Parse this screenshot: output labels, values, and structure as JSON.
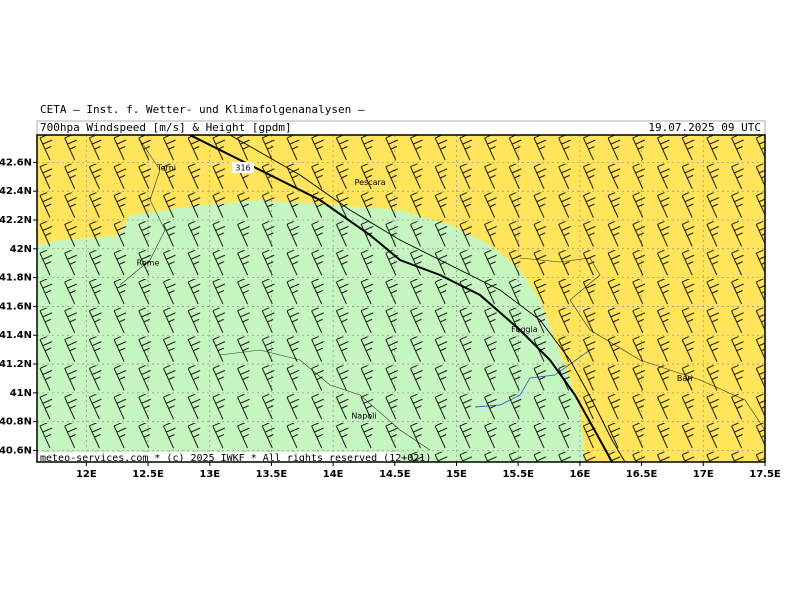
{
  "header": {
    "institute": "CETA – Inst. f. Wetter- und Klimafolgenanalysen –",
    "title": "700hpa Windspeed [m/s] & Height [gpdm]",
    "date": "19.07.2025 09 UTC"
  },
  "footer": "meteo-services.com * (c) 2025 IWKF * All rights reserved (12+021)",
  "map": {
    "xlim": [
      11.6,
      17.5
    ],
    "ylim": [
      40.52,
      42.79
    ],
    "xticks": [
      {
        "value": 12,
        "label": "12E"
      },
      {
        "value": 12.5,
        "label": "12.5E"
      },
      {
        "value": 13,
        "label": "13E"
      },
      {
        "value": 13.5,
        "label": "13.5E"
      },
      {
        "value": 14,
        "label": "14E"
      },
      {
        "value": 14.5,
        "label": "14.5E"
      },
      {
        "value": 15,
        "label": "15E"
      },
      {
        "value": 15.5,
        "label": "15.5E"
      },
      {
        "value": 16,
        "label": "16E"
      },
      {
        "value": 16.5,
        "label": "16.5E"
      },
      {
        "value": 17,
        "label": "17E"
      },
      {
        "value": 17.5,
        "label": "17.5E"
      }
    ],
    "yticks": [
      {
        "value": 40.6,
        "label": "40.6N"
      },
      {
        "value": 40.8,
        "label": "40.8N"
      },
      {
        "value": 41,
        "label": "41N"
      },
      {
        "value": 41.2,
        "label": "41.2N"
      },
      {
        "value": 41.4,
        "label": "41.4N"
      },
      {
        "value": 41.6,
        "label": "41.6N"
      },
      {
        "value": 41.8,
        "label": "41.8N"
      },
      {
        "value": 42,
        "label": "42N"
      },
      {
        "value": 42.2,
        "label": "42.2N"
      },
      {
        "value": 42.4,
        "label": "42.4N"
      },
      {
        "value": 42.6,
        "label": "42.6N"
      }
    ],
    "cities": [
      {
        "name": "Terni",
        "lon": 12.65,
        "lat": 42.56
      },
      {
        "name": "Pescara",
        "lon": 14.3,
        "lat": 42.46
      },
      {
        "name": "Rome",
        "lon": 12.5,
        "lat": 41.9
      },
      {
        "name": "Foggia",
        "lon": 15.55,
        "lat": 41.44
      },
      {
        "name": "Bari",
        "lon": 16.85,
        "lat": 41.1
      },
      {
        "name": "Napoli",
        "lon": 14.25,
        "lat": 40.84
      }
    ],
    "contour_label": "316"
  }
}
